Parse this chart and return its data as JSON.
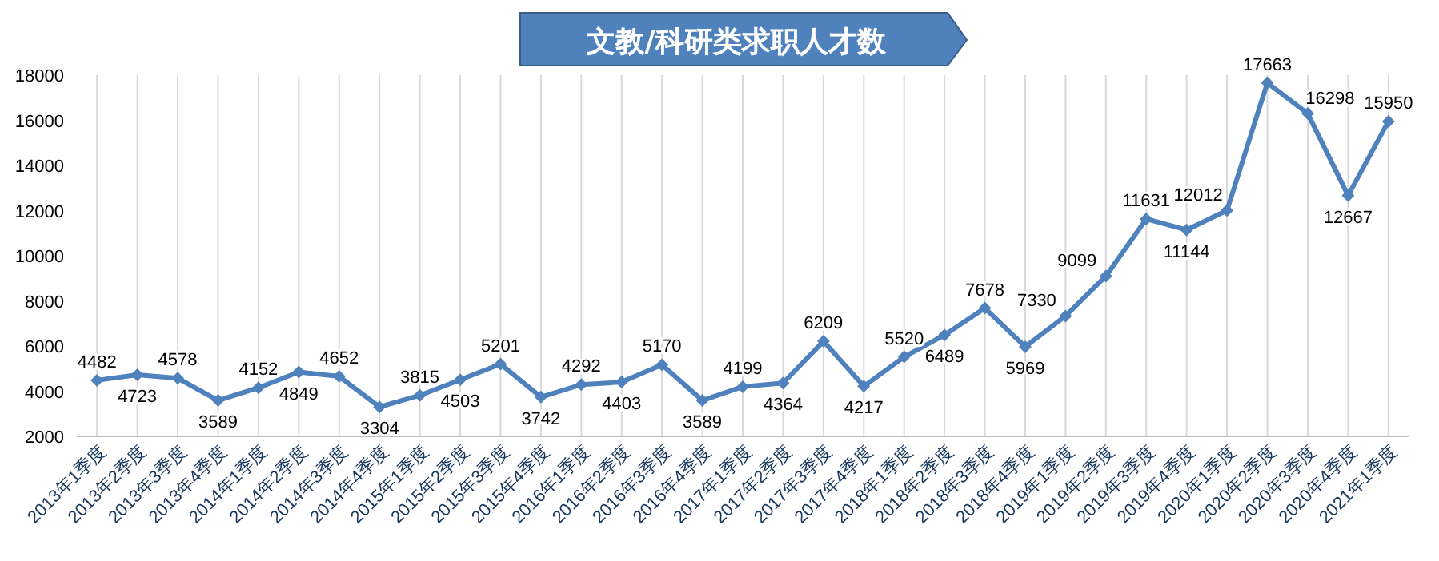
{
  "chart_data": {
    "type": "line",
    "title": "文教/科研类求职人才数",
    "categories": [
      "2013年1季度",
      "2013年2季度",
      "2013年3季度",
      "2013年4季度",
      "2014年1季度",
      "2014年2季度",
      "2014年3季度",
      "2014年4季度",
      "2015年1季度",
      "2015年2季度",
      "2015年3季度",
      "2015年4季度",
      "2016年1季度",
      "2016年2季度",
      "2016年3季度",
      "2016年4季度",
      "2017年1季度",
      "2017年2季度",
      "2017年3季度",
      "2017年4季度",
      "2018年1季度",
      "2018年2季度",
      "2018年3季度",
      "2018年4季度",
      "2019年1季度",
      "2019年2季度",
      "2019年3季度",
      "2019年4季度",
      "2020年1季度",
      "2020年2季度",
      "2020年3季度",
      "2020年4季度",
      "2021年1季度"
    ],
    "series": [
      {
        "color": "#4f81bd",
        "values": [
          4482,
          4723,
          4578,
          3589,
          4152,
          4849,
          4652,
          3304,
          3815,
          4503,
          5201,
          3742,
          4292,
          4403,
          5170,
          3589,
          4199,
          4364,
          6209,
          4217,
          5520,
          6489,
          7678,
          5969,
          7330,
          9099,
          11631,
          11144,
          12012,
          17663,
          16298,
          12667,
          15950
        ]
      }
    ],
    "ylim": [
      2000,
      18000
    ],
    "yticks": [
      2000,
      4000,
      6000,
      8000,
      10000,
      12000,
      14000,
      16000,
      18000
    ],
    "grid": "x",
    "marker": "diamond",
    "line_style": "solid",
    "data_labels": true
  }
}
